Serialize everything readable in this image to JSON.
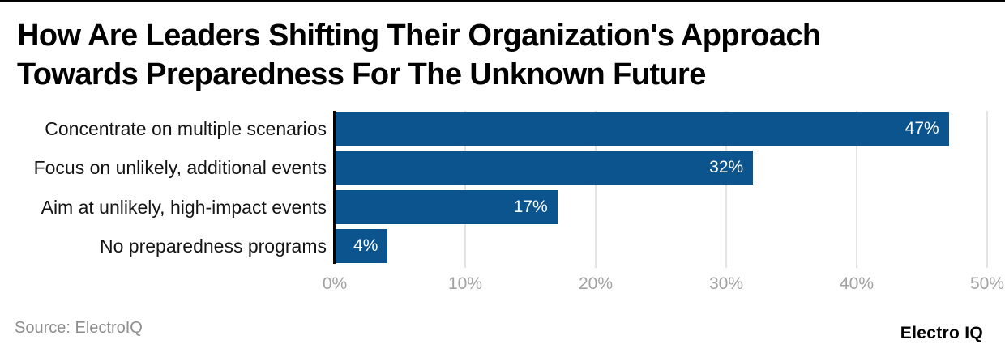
{
  "page": {
    "title_line1": "How Are Leaders Shifting Their Organization's Approach",
    "title_line2": "Towards Preparedness For The Unknown Future",
    "source": "Source: ElectroIQ",
    "brand": "Electro IQ"
  },
  "colors": {
    "bar": "#0c548d",
    "value_label": "#ffffff",
    "axis_line": "#000000",
    "gridline": "#e4e4e4",
    "tick_label": "#a2a2a2",
    "category_label": "#141414",
    "title": "#000000",
    "source": "#8e8e8e",
    "brand": "#000000",
    "top_rule": "#000000"
  },
  "chart_data": {
    "type": "bar",
    "orientation": "horizontal",
    "title": "How Are Leaders Shifting Their Organization's Approach Towards Preparedness For The Unknown Future",
    "categories": [
      "Concentrate on multiple scenarios",
      "Focus on unlikely, additional events",
      "Aim at unlikely, high-impact events",
      "No preparedness programs"
    ],
    "values": [
      47,
      32,
      17,
      4
    ],
    "value_labels": [
      "47%",
      "32%",
      "17%",
      "4%"
    ],
    "xlabel": "",
    "ylabel": "",
    "xlim": [
      0,
      50
    ],
    "xticks": [
      0,
      10,
      20,
      30,
      40,
      50
    ],
    "xtick_labels": [
      "0%",
      "10%",
      "20%",
      "30%",
      "40%",
      "50%"
    ],
    "grid": "vertical",
    "legend": "none"
  }
}
